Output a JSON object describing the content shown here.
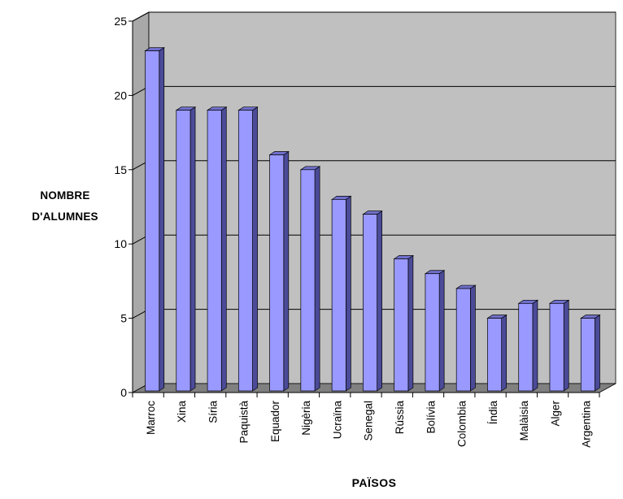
{
  "chart_data": {
    "type": "bar",
    "title": "",
    "ylabel_lines": [
      "NOMBRE",
      "D'ALUMNES"
    ],
    "xlabel": "PAÏSOS",
    "categories": [
      "Marroc",
      "Xina",
      "Síria",
      "Paquistà",
      "Equador",
      "Nigèria",
      "Ucraïna",
      "Senegal",
      "Rússia",
      "Bolívia",
      "Colombia",
      "Índia",
      "Malàisia",
      "Alger",
      "Argentina"
    ],
    "values": [
      23,
      19,
      19,
      19,
      16,
      15,
      13,
      12,
      9,
      8,
      7,
      5,
      6,
      6,
      5
    ],
    "ylim": [
      0,
      25
    ],
    "yticks": [
      0,
      5,
      10,
      15,
      20,
      25
    ],
    "grid": true,
    "three_d": true,
    "colors": {
      "bar_front": "#9999ff",
      "bar_side": "#4b4b99",
      "bar_top": "#7070cc",
      "wall": "#c0c0c0",
      "floor": "#808080",
      "gridline": "#000000"
    }
  }
}
